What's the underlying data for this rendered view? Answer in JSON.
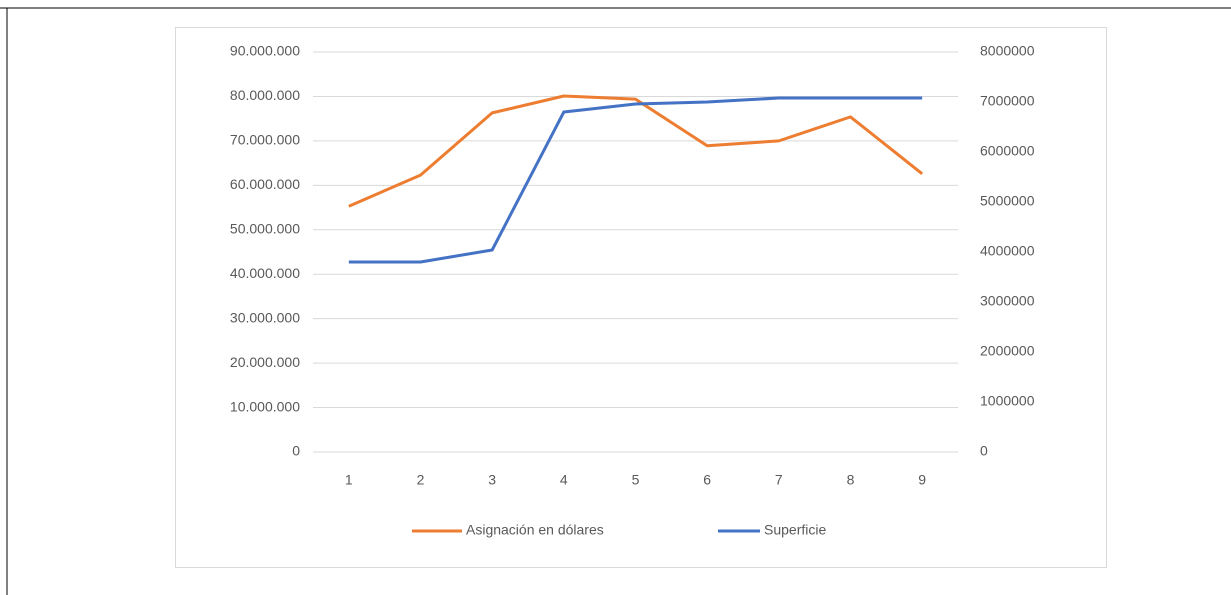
{
  "chart_data": {
    "type": "line",
    "categories": [
      "1",
      "2",
      "3",
      "4",
      "5",
      "6",
      "7",
      "8",
      "9"
    ],
    "series": [
      {
        "name": "Asignación en dólares",
        "color": "#ed7d31",
        "axis": "y",
        "values": [
          55300000,
          62300000,
          76300000,
          80100000,
          79400000,
          68900000,
          70000000,
          75400000,
          62600000
        ]
      },
      {
        "name": "Superficie",
        "color": "#4472c4",
        "axis": "y2",
        "values": [
          3800000,
          3800000,
          4040000,
          6800000,
          6960000,
          7000000,
          7080000,
          7080000,
          7080000
        ]
      }
    ],
    "ylim": [
      0,
      90000000
    ],
    "yticks": [
      0,
      {
        "value": 10000000,
        "label": "10.000.000"
      },
      {
        "value": 20000000,
        "label": "20.000.000"
      },
      {
        "value": 30000000,
        "label": "30.000.000"
      },
      {
        "value": 40000000,
        "label": "40.000.000"
      },
      {
        "value": 50000000,
        "label": "50.000.000"
      },
      {
        "value": 60000000,
        "label": "60.000.000"
      },
      {
        "value": 70000000,
        "label": "70.000.000"
      },
      {
        "value": 80000000,
        "label": "80.000.000"
      },
      {
        "value": 90000000,
        "label": "90.000.000"
      }
    ],
    "y2lim": [
      0,
      8000000
    ],
    "y2ticks": [
      0,
      1000000,
      2000000,
      3000000,
      4000000,
      5000000,
      6000000,
      7000000,
      8000000
    ],
    "grid": true,
    "legend": "bottom"
  }
}
